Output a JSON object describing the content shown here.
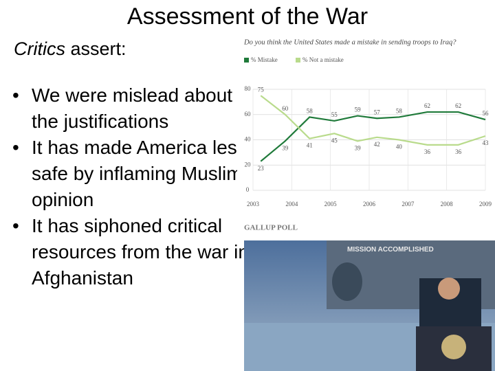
{
  "title": "Assessment of the War",
  "critics": {
    "emphasis": "Critics",
    "rest": "assert:"
  },
  "bullets": [
    "We were mislead about the justifications",
    "It has made America less safe by inflaming Muslim opinion",
    "It has siphoned critical resources from the war in Afghanistan"
  ],
  "chart_data": {
    "type": "line",
    "title": "Do you think the United States made a mistake in sending troops to Iraq?",
    "x": [
      2003.2,
      2003.83,
      2004.46,
      2005.1,
      2005.7,
      2006.2,
      2006.77,
      2007.5,
      2008.3,
      2009.0
    ],
    "series": [
      {
        "name": "% Mistake",
        "color": "#1f7a3a",
        "values": [
          23,
          39,
          58,
          55,
          59,
          57,
          58,
          62,
          62,
          56
        ]
      },
      {
        "name": "% Not a mistake",
        "color": "#b9db8c",
        "values": [
          75,
          60,
          41,
          45,
          39,
          42,
          40,
          36,
          36,
          43
        ]
      }
    ],
    "xlim": [
      2003,
      2009
    ],
    "xticks": [
      2003,
      2004,
      2005,
      2006,
      2007,
      2008,
      2009
    ],
    "ylim": [
      0,
      80
    ],
    "yticks": [
      0,
      20,
      40,
      60,
      80
    ],
    "grid": true,
    "source": "GALLUP POLL"
  },
  "photo": {
    "banner": "MISSION ACCOMPLISHED"
  }
}
